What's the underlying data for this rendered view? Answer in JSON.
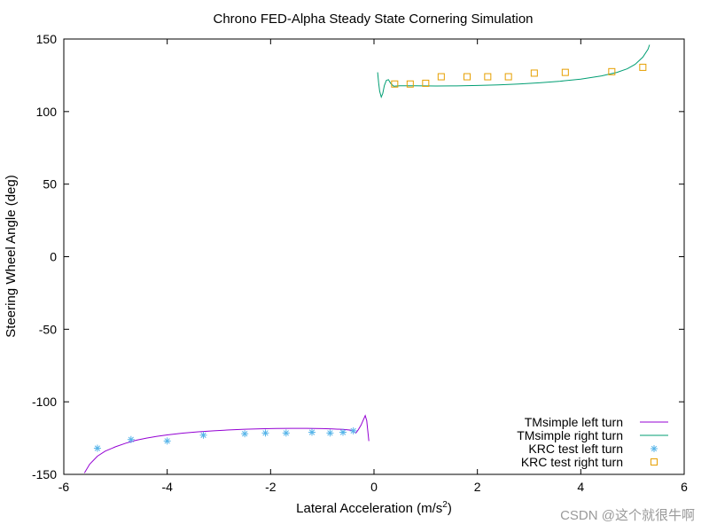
{
  "chart_data": {
    "type": "line",
    "title": "Chrono FED-Alpha Steady State Cornering Simulation",
    "xlabel": "Lateral Acceleration (m/s",
    "xlabel_sup": "2",
    "xlabel_close": ")",
    "ylabel": "Steering Wheel Angle (deg)",
    "xlim": [
      -6,
      6
    ],
    "ylim": [
      -150,
      150
    ],
    "xticks": [
      -6,
      -4,
      -2,
      0,
      2,
      4,
      6
    ],
    "yticks": [
      -150,
      -100,
      -50,
      0,
      50,
      100,
      150
    ],
    "grid": false,
    "legend_position": "bottom-right",
    "series": [
      {
        "name": "TMsimple left turn",
        "style": "line",
        "color": "#9400d3",
        "points": [
          [
            -5.6,
            -149
          ],
          [
            -5.5,
            -143
          ],
          [
            -5.35,
            -137.5
          ],
          [
            -5.2,
            -134
          ],
          [
            -5.0,
            -131
          ],
          [
            -4.8,
            -128.5
          ],
          [
            -4.6,
            -126.5
          ],
          [
            -4.4,
            -125
          ],
          [
            -4.2,
            -123.8
          ],
          [
            -4.0,
            -122.8
          ],
          [
            -3.7,
            -121.6
          ],
          [
            -3.4,
            -120.7
          ],
          [
            -3.1,
            -120.0
          ],
          [
            -2.8,
            -119.4
          ],
          [
            -2.5,
            -118.9
          ],
          [
            -2.2,
            -118.6
          ],
          [
            -1.9,
            -118.4
          ],
          [
            -1.6,
            -118.3
          ],
          [
            -1.3,
            -118.3
          ],
          [
            -1.0,
            -118.5
          ],
          [
            -0.8,
            -118.7
          ],
          [
            -0.6,
            -119.0
          ],
          [
            -0.45,
            -119.5
          ],
          [
            -0.35,
            -121.5
          ],
          [
            -0.3,
            -119
          ],
          [
            -0.25,
            -116
          ],
          [
            -0.2,
            -112
          ],
          [
            -0.17,
            -109.5
          ],
          [
            -0.14,
            -113
          ],
          [
            -0.12,
            -120
          ],
          [
            -0.1,
            -127
          ]
        ]
      },
      {
        "name": "TMsimple right turn",
        "style": "line",
        "color": "#009e73",
        "points": [
          [
            0.07,
            127
          ],
          [
            0.09,
            120
          ],
          [
            0.11,
            114
          ],
          [
            0.14,
            110
          ],
          [
            0.17,
            112.5
          ],
          [
            0.2,
            118
          ],
          [
            0.24,
            121.5
          ],
          [
            0.28,
            122
          ],
          [
            0.32,
            119.5
          ],
          [
            0.38,
            117.5
          ],
          [
            0.5,
            117.8
          ],
          [
            0.8,
            117.8
          ],
          [
            1.2,
            117.6
          ],
          [
            1.6,
            117.7
          ],
          [
            2.0,
            118.0
          ],
          [
            2.4,
            118.4
          ],
          [
            2.8,
            119.0
          ],
          [
            3.2,
            119.8
          ],
          [
            3.6,
            120.9
          ],
          [
            4.0,
            122.4
          ],
          [
            4.4,
            124.6
          ],
          [
            4.7,
            127.0
          ],
          [
            4.9,
            129.5
          ],
          [
            5.05,
            132.5
          ],
          [
            5.2,
            137.5
          ],
          [
            5.3,
            143
          ],
          [
            5.33,
            146
          ]
        ]
      },
      {
        "name": "KRC test left turn",
        "style": "marker-star",
        "color": "#56b4e9",
        "points": [
          [
            -5.35,
            -132
          ],
          [
            -4.7,
            -126
          ],
          [
            -4.0,
            -127
          ],
          [
            -3.3,
            -123
          ],
          [
            -2.5,
            -122
          ],
          [
            -2.1,
            -121.5
          ],
          [
            -1.7,
            -121.5
          ],
          [
            -1.2,
            -121
          ],
          [
            -0.85,
            -121.5
          ],
          [
            -0.6,
            -121
          ],
          [
            -0.4,
            -120
          ]
        ]
      },
      {
        "name": "KRC test right turn",
        "style": "marker-square",
        "color": "#e69f00",
        "points": [
          [
            0.4,
            119
          ],
          [
            0.7,
            119
          ],
          [
            1.0,
            119.5
          ],
          [
            1.3,
            124
          ],
          [
            1.8,
            124
          ],
          [
            2.2,
            124
          ],
          [
            2.6,
            124
          ],
          [
            3.1,
            126.5
          ],
          [
            3.7,
            127
          ],
          [
            4.6,
            127.5
          ],
          [
            5.2,
            130.5
          ]
        ]
      }
    ]
  },
  "watermark": "CSDN @这个就很牛啊"
}
